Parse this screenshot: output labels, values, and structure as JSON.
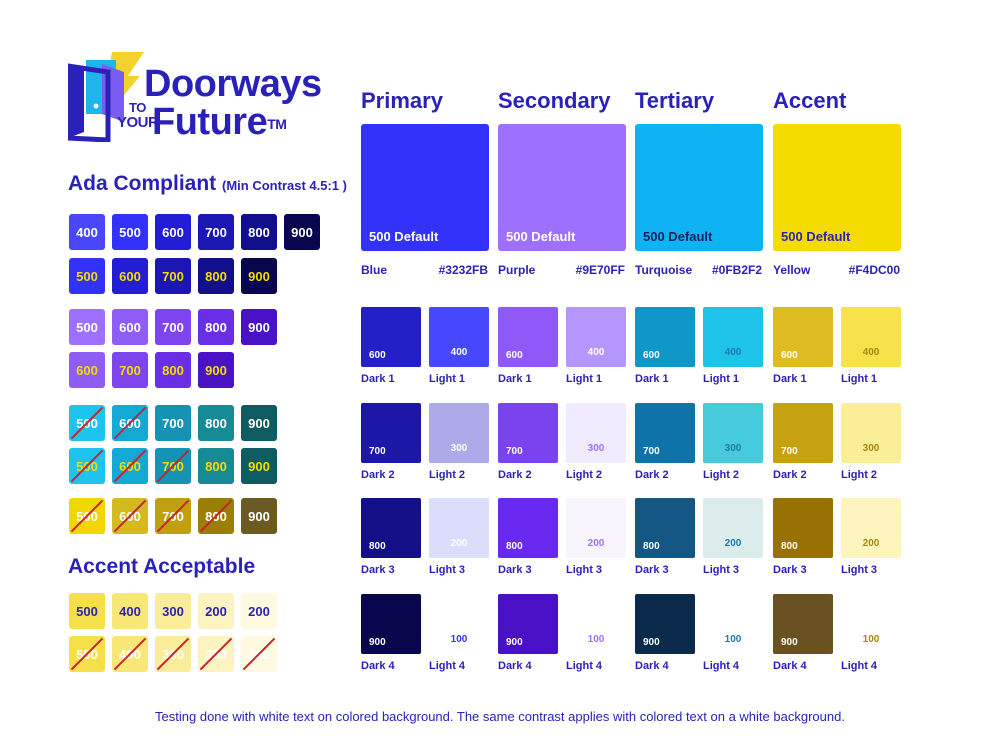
{
  "logo": {
    "line1": "Doorways",
    "to": "TO",
    "your": "YOUR",
    "line2": "Future",
    "tm": "TM",
    "colors": {
      "door": "#2a22b8",
      "light_blue": "#1fb6ee",
      "purple": "#7b5cf0",
      "bolt": "#f4d22c"
    }
  },
  "ada": {
    "heading": "Ada Compliant",
    "subheading": "(Min Contrast 4.5:1 )",
    "rows": [
      [
        {
          "label": "400",
          "bg": "#4a47fb",
          "fg": "#ffffff",
          "slash": false
        },
        {
          "label": "500",
          "bg": "#3232fb",
          "fg": "#ffffff",
          "slash": false
        },
        {
          "label": "600",
          "bg": "#231ed6",
          "fg": "#ffffff",
          "slash": false
        },
        {
          "label": "700",
          "bg": "#1b16b4",
          "fg": "#ffffff",
          "slash": false
        },
        {
          "label": "800",
          "bg": "#120f8c",
          "fg": "#ffffff",
          "slash": false
        },
        {
          "label": "900",
          "bg": "#07064f",
          "fg": "#ffffff",
          "slash": false
        }
      ],
      [
        {
          "label": "500",
          "bg": "#3232fb",
          "fg": "#f4dc00",
          "slash": false
        },
        {
          "label": "600",
          "bg": "#231ed6",
          "fg": "#f4dc00",
          "slash": false
        },
        {
          "label": "700",
          "bg": "#1b16b4",
          "fg": "#f4dc00",
          "slash": false
        },
        {
          "label": "800",
          "bg": "#120f8c",
          "fg": "#f4dc00",
          "slash": false
        },
        {
          "label": "900",
          "bg": "#07064f",
          "fg": "#f4dc00",
          "slash": false
        }
      ],
      [
        {
          "label": "500",
          "bg": "#9e70ff",
          "fg": "#ffffff",
          "slash": false
        },
        {
          "label": "600",
          "bg": "#8f5cf6",
          "fg": "#ffffff",
          "slash": false
        },
        {
          "label": "700",
          "bg": "#7e45ee",
          "fg": "#ffffff",
          "slash": false
        },
        {
          "label": "800",
          "bg": "#6a2ee6",
          "fg": "#ffffff",
          "slash": false
        },
        {
          "label": "900",
          "bg": "#4a12c7",
          "fg": "#ffffff",
          "slash": false
        }
      ],
      [
        {
          "label": "600",
          "bg": "#8f5cf6",
          "fg": "#f4dc00",
          "slash": false
        },
        {
          "label": "700",
          "bg": "#7e45ee",
          "fg": "#f4dc00",
          "slash": false
        },
        {
          "label": "800",
          "bg": "#6a2ee6",
          "fg": "#f4dc00",
          "slash": false
        },
        {
          "label": "900",
          "bg": "#4a12c7",
          "fg": "#f4dc00",
          "slash": false
        }
      ],
      [
        {
          "label": "500",
          "bg": "#1fc3ef",
          "fg": "#ffffff",
          "slash": true
        },
        {
          "label": "600",
          "bg": "#14a9d4",
          "fg": "#ffffff",
          "slash": true
        },
        {
          "label": "700",
          "bg": "#1493b5",
          "fg": "#ffffff",
          "slash": false
        },
        {
          "label": "800",
          "bg": "#168a95",
          "fg": "#ffffff",
          "slash": false
        },
        {
          "label": "900",
          "bg": "#0f5b62",
          "fg": "#ffffff",
          "slash": false
        }
      ],
      [
        {
          "label": "500",
          "bg": "#1fc3ef",
          "fg": "#f4dc00",
          "slash": true
        },
        {
          "label": "600",
          "bg": "#14a9d4",
          "fg": "#f4dc00",
          "slash": true
        },
        {
          "label": "700",
          "bg": "#1493b5",
          "fg": "#f4dc00",
          "slash": true
        },
        {
          "label": "800",
          "bg": "#168a95",
          "fg": "#f4dc00",
          "slash": false
        },
        {
          "label": "900",
          "bg": "#0f5b62",
          "fg": "#f4dc00",
          "slash": false
        }
      ],
      [
        {
          "label": "500",
          "bg": "#f1d600",
          "fg": "#ffffff",
          "slash": true
        },
        {
          "label": "600",
          "bg": "#d4b91f",
          "fg": "#ffffff",
          "slash": true
        },
        {
          "label": "700",
          "bg": "#c19f10",
          "fg": "#ffffff",
          "slash": true
        },
        {
          "label": "800",
          "bg": "#9c7e06",
          "fg": "#ffffff",
          "slash": true
        },
        {
          "label": "900",
          "bg": "#6b5a22",
          "fg": "#ffffff",
          "slash": false
        }
      ]
    ]
  },
  "acceptable": {
    "heading": "Accent Acceptable",
    "rows": [
      [
        {
          "label": "500",
          "bg": "#f6e04a",
          "fg": "#2a22b8",
          "slash": false
        },
        {
          "label": "400",
          "bg": "#f8e677",
          "fg": "#2a22b8",
          "slash": false
        },
        {
          "label": "300",
          "bg": "#faec99",
          "fg": "#2a22b8",
          "slash": false
        },
        {
          "label": "200",
          "bg": "#fcf3c1",
          "fg": "#2a22b8",
          "slash": false
        },
        {
          "label": "200",
          "bg": "#fef9df",
          "fg": "#2a22b8",
          "slash": false
        }
      ],
      [
        {
          "label": "500",
          "bg": "#f6e04a",
          "fg": "#ffffff",
          "slash": true
        },
        {
          "label": "400",
          "bg": "#f8e677",
          "fg": "#ffffff",
          "slash": true
        },
        {
          "label": "300",
          "bg": "#faec99",
          "fg": "#ffffff",
          "slash": true
        },
        {
          "label": "200",
          "bg": "#fcf3c1",
          "fg": "#ffffff",
          "slash": true
        },
        {
          "label": "200",
          "bg": "#fef9df",
          "fg": "#ffffff",
          "slash": true
        }
      ]
    ]
  },
  "palettes": [
    {
      "title": "Primary",
      "name": "Blue",
      "hex": "#3232FB",
      "default_label": "500 Default",
      "main_bg": "#3232fb",
      "main_fg": "#ffffff",
      "shades": [
        [
          {
            "num": "600",
            "label": "Dark 1",
            "bg": "#2420c8",
            "fg": "#ffffff"
          },
          {
            "num": "400",
            "label": "Light 1",
            "bg": "#4747fd",
            "fg": "#ffffff"
          }
        ],
        [
          {
            "num": "700",
            "label": "Dark 2",
            "bg": "#1c17a6",
            "fg": "#ffffff"
          },
          {
            "num": "300",
            "label": "Light 2",
            "bg": "#aeaaea",
            "fg": "#ffffff"
          }
        ],
        [
          {
            "num": "800",
            "label": "Dark 3",
            "bg": "#130f86",
            "fg": "#ffffff"
          },
          {
            "num": "200",
            "label": "Light 3",
            "bg": "#dcdcfd",
            "fg": "#ffffff"
          }
        ],
        [
          {
            "num": "900",
            "label": "Dark 4",
            "bg": "#08074e",
            "fg": "#ffffff"
          },
          {
            "num": "100",
            "label": "Light 4",
            "bg": "#ffffff",
            "fg": "#3232fb"
          }
        ]
      ]
    },
    {
      "title": "Secondary",
      "name": "Purple",
      "hex": "#9E70FF",
      "default_label": "500 Default",
      "main_bg": "#9e70ff",
      "main_fg": "#ffffff",
      "shades": [
        [
          {
            "num": "600",
            "label": "Dark 1",
            "bg": "#9059f7",
            "fg": "#ffffff"
          },
          {
            "num": "400",
            "label": "Light 1",
            "bg": "#b596fd",
            "fg": "#ffffff"
          }
        ],
        [
          {
            "num": "700",
            "label": "Dark 2",
            "bg": "#7a43ee",
            "fg": "#ffffff"
          },
          {
            "num": "300",
            "label": "Light 2",
            "bg": "#f0ebfe",
            "fg": "#9e70ff"
          }
        ],
        [
          {
            "num": "800",
            "label": "Dark 3",
            "bg": "#6a29f1",
            "fg": "#ffffff"
          },
          {
            "num": "200",
            "label": "Light 3",
            "bg": "#f8f5ff",
            "fg": "#9e70ff"
          }
        ],
        [
          {
            "num": "900",
            "label": "Dark 4",
            "bg": "#4a10c6",
            "fg": "#ffffff"
          },
          {
            "num": "100",
            "label": "Light 4",
            "bg": "#ffffff",
            "fg": "#9e70ff"
          }
        ]
      ]
    },
    {
      "title": "Tertiary",
      "name": "Turquoise",
      "hex": "#0FB2F2",
      "default_label": "500 Default",
      "main_bg": "#0fb2f2",
      "main_fg": "#14245a",
      "shades": [
        [
          {
            "num": "600",
            "label": "Dark 1",
            "bg": "#0e97c8",
            "fg": "#ffffff"
          },
          {
            "num": "400",
            "label": "Light 1",
            "bg": "#1ec3ea",
            "fg": "#1b7aa8"
          }
        ],
        [
          {
            "num": "700",
            "label": "Dark 2",
            "bg": "#0e73a8",
            "fg": "#ffffff"
          },
          {
            "num": "300",
            "label": "Light 2",
            "bg": "#46cbdd",
            "fg": "#1b7aa8"
          }
        ],
        [
          {
            "num": "800",
            "label": "Dark 3",
            "bg": "#145784",
            "fg": "#ffffff"
          },
          {
            "num": "200",
            "label": "Light 3",
            "bg": "#dcecec",
            "fg": "#1b7aa8"
          }
        ],
        [
          {
            "num": "900",
            "label": "Dark 4",
            "bg": "#0c2b4c",
            "fg": "#ffffff"
          },
          {
            "num": "100",
            "label": "Light 4",
            "bg": "#ffffff",
            "fg": "#1b7aa8"
          }
        ]
      ]
    },
    {
      "title": "Accent",
      "name": "Yellow",
      "hex": "#F4DC00",
      "default_label": "500 Default",
      "main_bg": "#f4dc00",
      "main_fg": "#2a22b8",
      "shades": [
        [
          {
            "num": "600",
            "label": "Dark 1",
            "bg": "#debb21",
            "fg": "#ffffff"
          },
          {
            "num": "400",
            "label": "Light 1",
            "bg": "#f8e24a",
            "fg": "#a6880d"
          }
        ],
        [
          {
            "num": "700",
            "label": "Dark 2",
            "bg": "#c6a110",
            "fg": "#ffffff"
          },
          {
            "num": "300",
            "label": "Light 2",
            "bg": "#fbee99",
            "fg": "#a6880d"
          }
        ],
        [
          {
            "num": "800",
            "label": "Dark 3",
            "bg": "#977102",
            "fg": "#ffffff"
          },
          {
            "num": "200",
            "label": "Light 3",
            "bg": "#fdf5bd",
            "fg": "#a6880d"
          }
        ],
        [
          {
            "num": "900",
            "label": "Dark 4",
            "bg": "#6a5122",
            "fg": "#ffffff"
          },
          {
            "num": "100",
            "label": "Light 4",
            "bg": "#ffffff",
            "fg": "#a6880d"
          }
        ]
      ]
    }
  ],
  "footer": "Testing done with white text on colored background. The same contrast applies with colored text on a white background."
}
